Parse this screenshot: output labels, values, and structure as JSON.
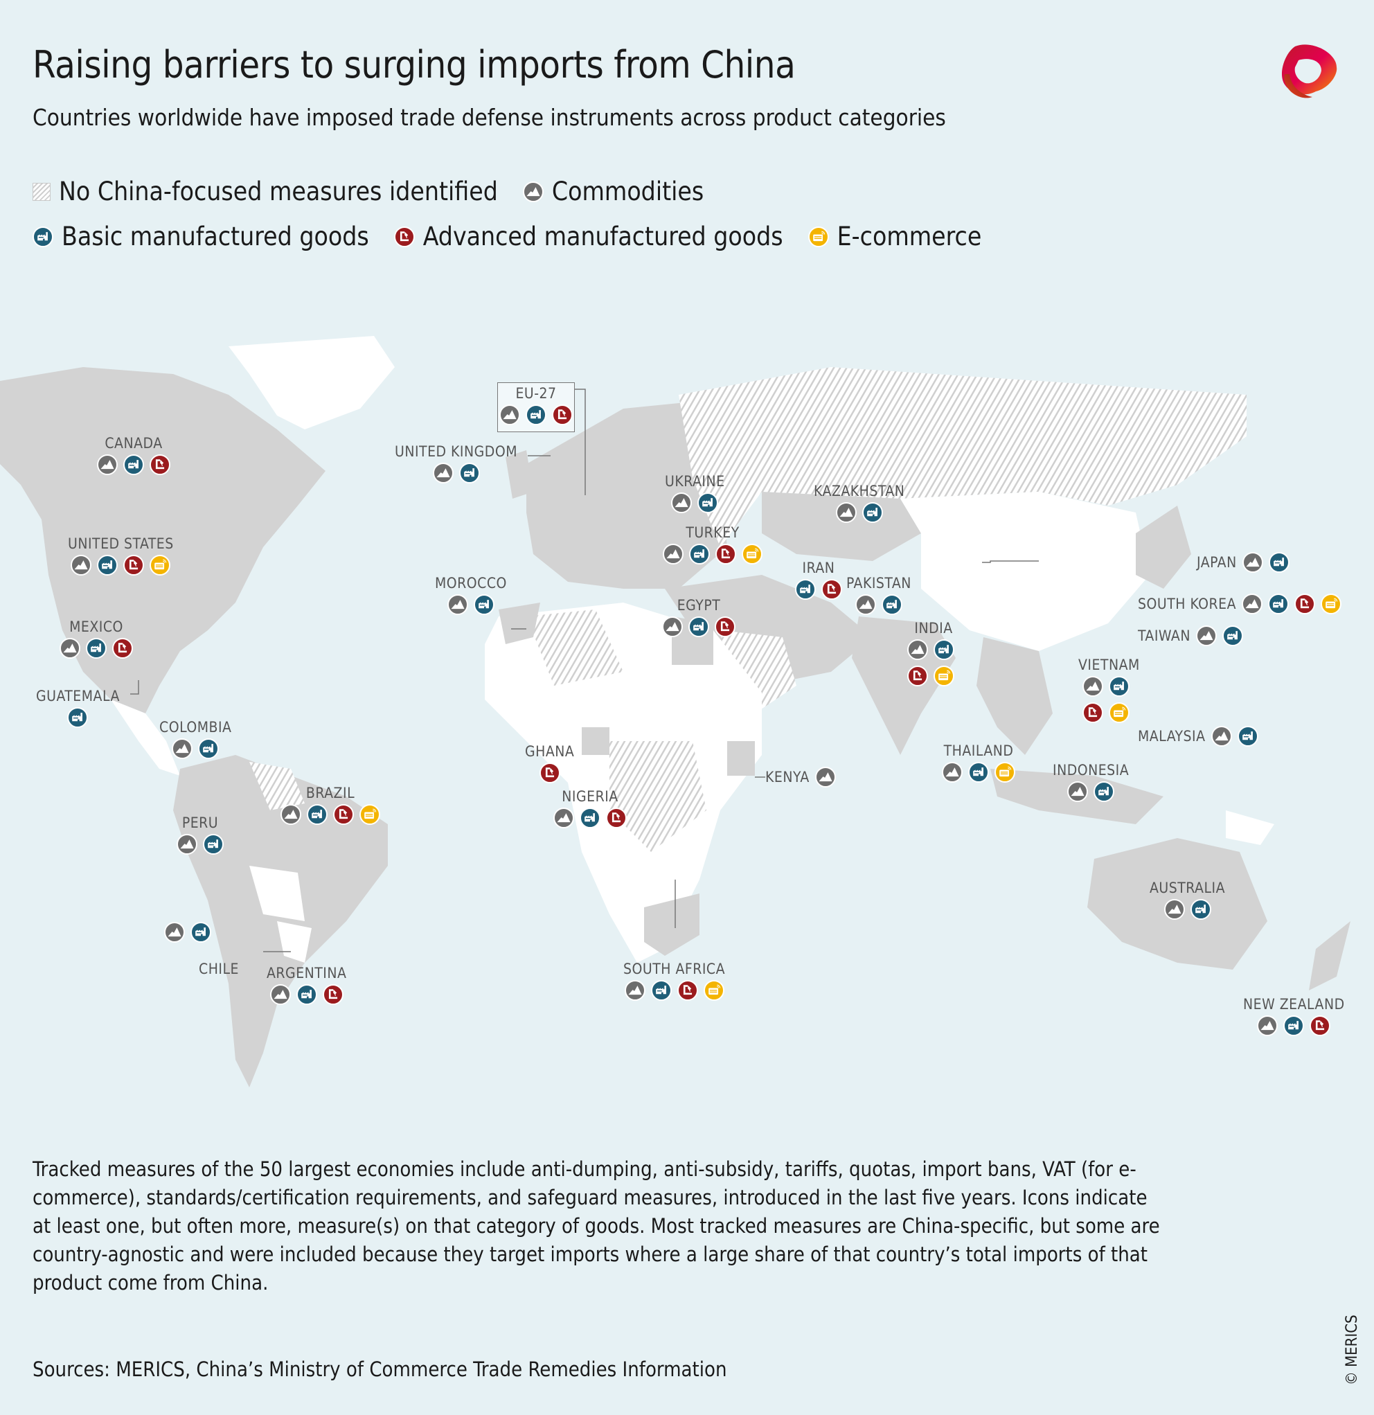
{
  "header": {
    "title": "Raising barriers to surging imports from China",
    "subtitle": "Countries worldwide have imposed trade defense instruments across product categories",
    "logo": "merics-ribbon-logo"
  },
  "legend": {
    "items": [
      {
        "key": "none",
        "label": "No China-focused measures identified",
        "icon": "hatch-swatch",
        "color": "#cfcfcf"
      },
      {
        "key": "commodities",
        "label": "Commodities",
        "icon": "mountain-icon",
        "color": "#6d6d6d"
      },
      {
        "key": "basic",
        "label": "Basic manufactured goods",
        "icon": "factory-icon",
        "color": "#1f5e78"
      },
      {
        "key": "advanced",
        "label": "Advanced manufactured goods",
        "icon": "machine-arm-icon",
        "color": "#9b1b1e"
      },
      {
        "key": "ecommerce",
        "label": "E-commerce",
        "icon": "card-wireless-icon",
        "color": "#f4b400"
      }
    ]
  },
  "map": {
    "colors": {
      "ocean": "#e6f1f4",
      "measures_country": "#d3d3d3",
      "no_data_country": "#ffffff",
      "hatch": "#cfcfcf"
    },
    "countries": [
      {
        "name": "CANADA",
        "measures": [
          "commodities",
          "basic",
          "advanced"
        ]
      },
      {
        "name": "UNITED STATES",
        "measures": [
          "commodities",
          "basic",
          "advanced",
          "ecommerce"
        ]
      },
      {
        "name": "MEXICO",
        "measures": [
          "commodities",
          "basic",
          "advanced"
        ]
      },
      {
        "name": "GUATEMALA",
        "measures": [
          "basic"
        ]
      },
      {
        "name": "COLOMBIA",
        "measures": [
          "commodities",
          "basic"
        ]
      },
      {
        "name": "PERU",
        "measures": [
          "commodities",
          "basic"
        ]
      },
      {
        "name": "BRAZIL",
        "measures": [
          "commodities",
          "basic",
          "advanced",
          "ecommerce"
        ]
      },
      {
        "name": "CHILE",
        "measures": [
          "commodities",
          "basic"
        ]
      },
      {
        "name": "ARGENTINA",
        "measures": [
          "commodities",
          "basic",
          "advanced"
        ]
      },
      {
        "name": "EU-27",
        "measures": [
          "commodities",
          "basic",
          "advanced"
        ]
      },
      {
        "name": "UNITED KINGDOM",
        "measures": [
          "commodities",
          "basic"
        ]
      },
      {
        "name": "MOROCCO",
        "measures": [
          "commodities",
          "basic"
        ]
      },
      {
        "name": "UKRAINE",
        "measures": [
          "commodities",
          "basic"
        ]
      },
      {
        "name": "TURKEY",
        "measures": [
          "commodities",
          "basic",
          "advanced",
          "ecommerce"
        ]
      },
      {
        "name": "EGYPT",
        "measures": [
          "commodities",
          "basic",
          "advanced"
        ]
      },
      {
        "name": "KAZAKHSTAN",
        "measures": [
          "commodities",
          "basic"
        ]
      },
      {
        "name": "IRAN",
        "measures": [
          "basic",
          "advanced"
        ]
      },
      {
        "name": "PAKISTAN",
        "measures": [
          "commodities",
          "basic"
        ]
      },
      {
        "name": "INDIA",
        "measures": [
          "commodities",
          "basic",
          "advanced",
          "ecommerce"
        ]
      },
      {
        "name": "GHANA",
        "measures": [
          "advanced"
        ]
      },
      {
        "name": "NIGERIA",
        "measures": [
          "commodities",
          "basic",
          "advanced"
        ]
      },
      {
        "name": "KENYA",
        "measures": [
          "commodities"
        ]
      },
      {
        "name": "SOUTH AFRICA",
        "measures": [
          "commodities",
          "basic",
          "advanced",
          "ecommerce"
        ]
      },
      {
        "name": "JAPAN",
        "measures": [
          "commodities",
          "basic"
        ]
      },
      {
        "name": "SOUTH KOREA",
        "measures": [
          "commodities",
          "basic",
          "advanced",
          "ecommerce"
        ]
      },
      {
        "name": "TAIWAN",
        "measures": [
          "commodities",
          "basic"
        ]
      },
      {
        "name": "VIETNAM",
        "measures": [
          "commodities",
          "basic",
          "advanced",
          "ecommerce"
        ]
      },
      {
        "name": "THAILAND",
        "measures": [
          "commodities",
          "basic",
          "ecommerce"
        ]
      },
      {
        "name": "MALAYSIA",
        "measures": [
          "commodities",
          "basic"
        ]
      },
      {
        "name": "INDONESIA",
        "measures": [
          "commodities",
          "basic"
        ]
      },
      {
        "name": "AUSTRALIA",
        "measures": [
          "commodities",
          "basic"
        ]
      },
      {
        "name": "NEW ZEALAND",
        "measures": [
          "commodities",
          "basic",
          "advanced"
        ]
      }
    ]
  },
  "footer": {
    "notes": "Tracked measures of the 50 largest economies include anti-dumping, anti-subsidy, tariffs, quotas, import bans, VAT (for e-commerce), standards/certification requirements, and safeguard measures, introduced in the last five years. Icons indicate at least one, but often more, measure(s) on that category of goods. Most tracked measures are China-specific, but some are country-agnostic and were included because they target imports where a large share of that country’s total imports of that product come from China.",
    "sources": "Sources: MERICS, China’s Ministry of Commerce Trade Remedies Information",
    "copyright": "© MERICS"
  }
}
